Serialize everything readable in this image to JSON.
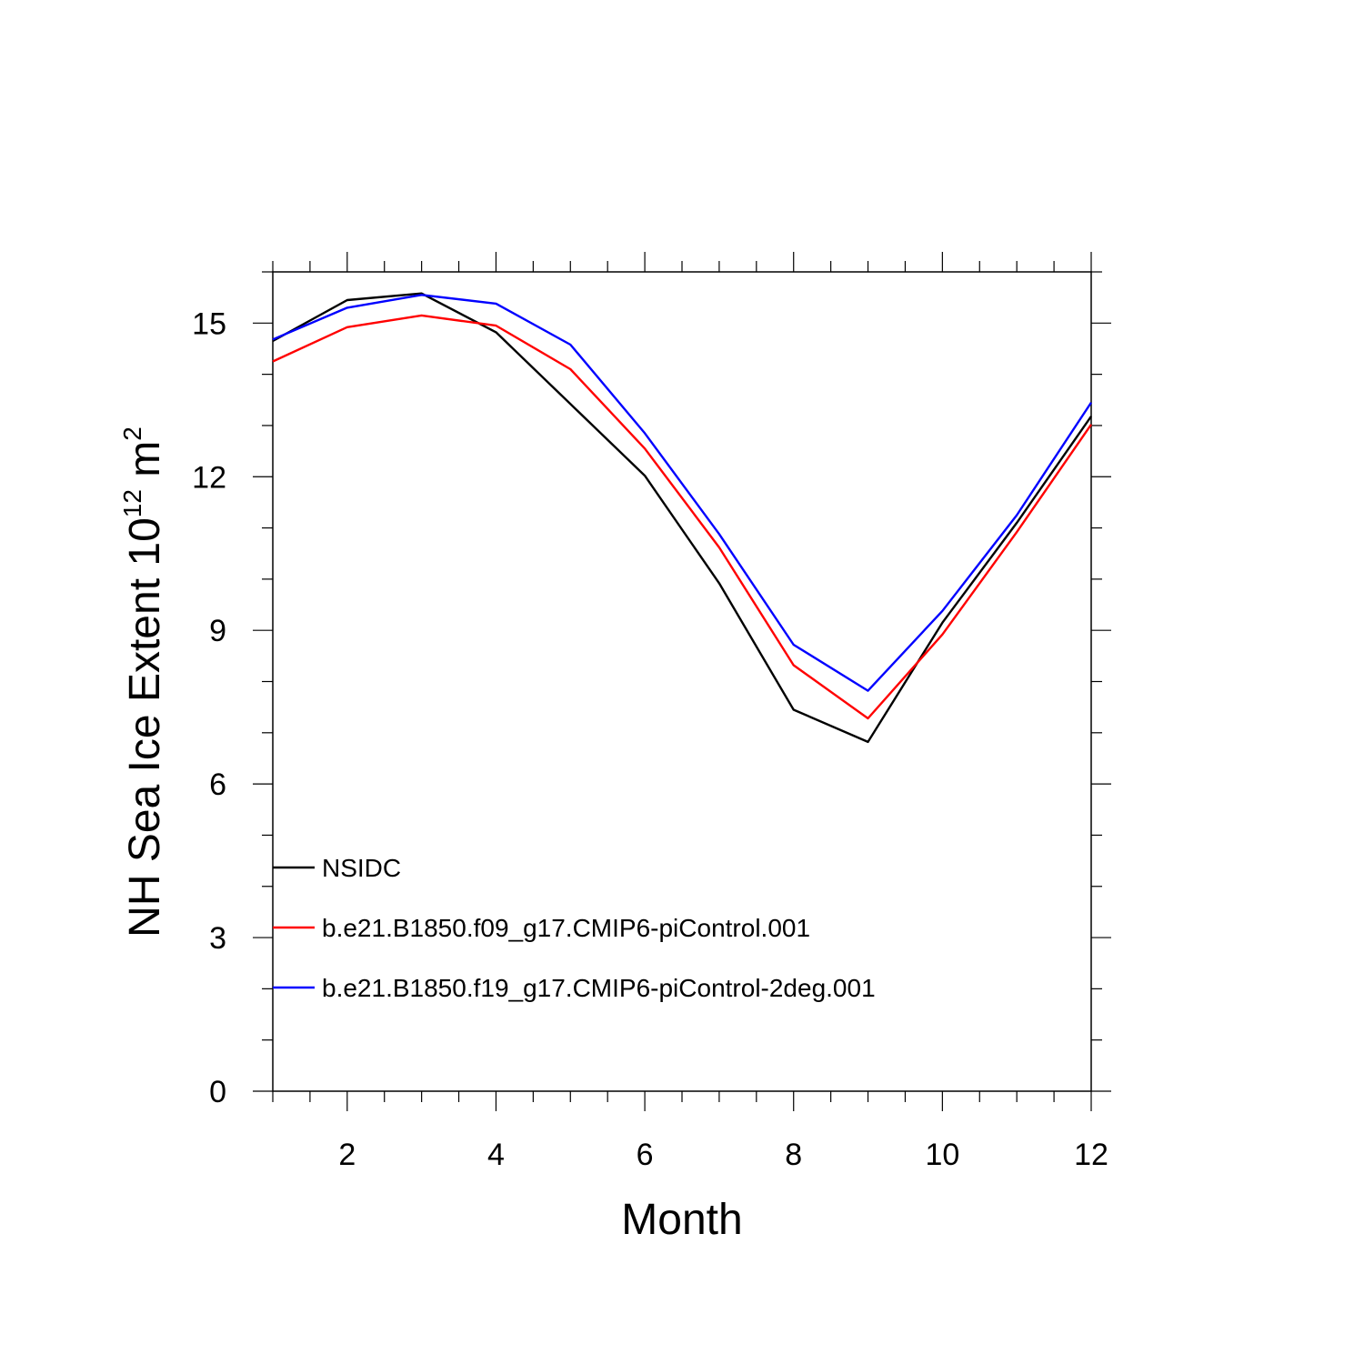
{
  "chart_data": {
    "type": "line",
    "xlabel": "Month",
    "ylabel": "NH Sea Ice Extent 10",
    "ylabel_exponent": "12",
    "ylabel_unit": " m",
    "ylabel_unit_exponent": "2",
    "xlim": [
      1,
      12
    ],
    "ylim": [
      0,
      16
    ],
    "x_ticks": [
      2,
      4,
      6,
      8,
      10,
      12
    ],
    "y_ticks": [
      0,
      3,
      6,
      9,
      12,
      15
    ],
    "x": [
      1,
      2,
      3,
      4,
      5,
      6,
      7,
      8,
      9,
      10,
      11,
      12
    ],
    "series": [
      {
        "name": "NSIDC",
        "color": "#000000",
        "values": [
          14.65,
          15.45,
          15.58,
          14.82,
          13.42,
          12.02,
          9.92,
          7.45,
          6.82,
          9.15,
          11.1,
          13.18
        ]
      },
      {
        "name": "b.e21.B1850.f09_g17.CMIP6-piControl.001",
        "color": "#ff0000",
        "values": [
          14.25,
          14.92,
          15.15,
          14.95,
          14.1,
          12.55,
          10.62,
          8.32,
          7.28,
          8.92,
          10.92,
          13.02
        ]
      },
      {
        "name": "b.e21.B1850.f19_g17.CMIP6-piControl-2deg.001",
        "color": "#0000ff",
        "values": [
          14.68,
          15.3,
          15.55,
          15.38,
          14.58,
          12.85,
          10.88,
          8.72,
          7.82,
          9.38,
          11.25,
          13.45
        ]
      }
    ],
    "legend_position": "bottom-left",
    "grid": false
  }
}
